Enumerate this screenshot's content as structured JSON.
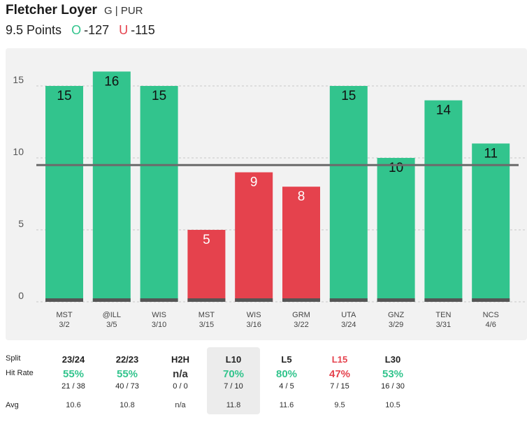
{
  "player": {
    "name": "Fletcher Loyer",
    "team_pos": "G | PUR",
    "line": "9.5 Points",
    "over_letter": "O",
    "over_odds": "-127",
    "under_letter": "U",
    "under_odds": "-115"
  },
  "colors": {
    "over": "#32c48d",
    "under": "#e5424d",
    "line": "#6b6b6b",
    "bar_base": "#555555"
  },
  "chart_data": {
    "type": "bar",
    "categories": [
      {
        "opponent": "MST",
        "date": "3/2"
      },
      {
        "opponent": "@ILL",
        "date": "3/5"
      },
      {
        "opponent": "WIS",
        "date": "3/10"
      },
      {
        "opponent": "MST",
        "date": "3/15"
      },
      {
        "opponent": "WIS",
        "date": "3/16"
      },
      {
        "opponent": "GRM",
        "date": "3/22"
      },
      {
        "opponent": "UTA",
        "date": "3/24"
      },
      {
        "opponent": "GNZ",
        "date": "3/29"
      },
      {
        "opponent": "TEN",
        "date": "3/31"
      },
      {
        "opponent": "NCS",
        "date": "4/6"
      }
    ],
    "values": [
      15,
      16,
      15,
      5,
      9,
      8,
      15,
      10,
      14,
      11
    ],
    "threshold": 9.5,
    "yticks": [
      0,
      5,
      10,
      15
    ],
    "ylim": [
      0,
      17
    ],
    "grid": true
  },
  "stats": {
    "row_labels": {
      "split": "Split",
      "hit_rate": "Hit Rate",
      "avg": "Avg"
    },
    "columns": [
      {
        "label": "23/24",
        "rate": "55%",
        "frac": "21 / 38",
        "avg": "10.6",
        "tone": "green"
      },
      {
        "label": "22/23",
        "rate": "55%",
        "frac": "40 / 73",
        "avg": "10.8",
        "tone": "green"
      },
      {
        "label": "H2H",
        "rate": "n/a",
        "frac": "0 / 0",
        "avg": "n/a",
        "tone": "neutral"
      },
      {
        "label": "L10",
        "rate": "70%",
        "frac": "7 / 10",
        "avg": "11.8",
        "tone": "green",
        "selected": true
      },
      {
        "label": "L5",
        "rate": "80%",
        "frac": "4 / 5",
        "avg": "11.6",
        "tone": "green"
      },
      {
        "label": "L15",
        "rate": "47%",
        "frac": "7 / 15",
        "avg": "9.5",
        "tone": "red"
      },
      {
        "label": "L30",
        "rate": "53%",
        "frac": "16 / 30",
        "avg": "10.5",
        "tone": "green"
      }
    ]
  }
}
